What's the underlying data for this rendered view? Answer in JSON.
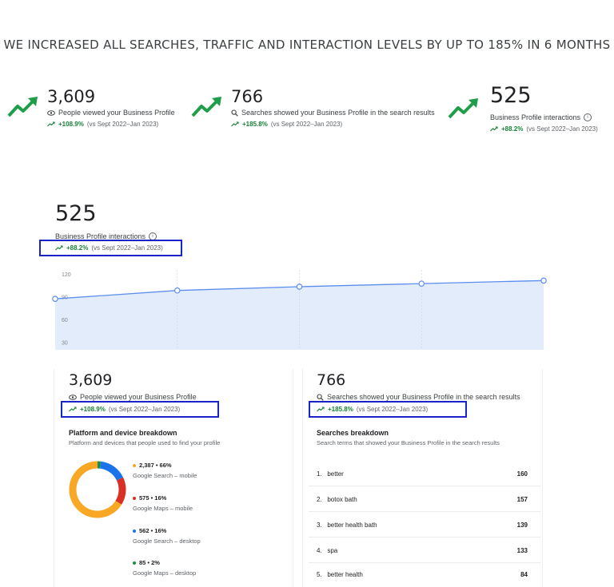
{
  "headline": "WE INCREASED ALL SEARCHES, TRAFFIC AND INTERACTION LEVELS BY UP TO 185% IN 6 MONTHS",
  "stats": [
    {
      "value": "3,609",
      "label": "People viewed your Business Profile",
      "pct": "+108.9%",
      "period": "(vs Sept 2022–Jan 2023)",
      "icon": "eye-icon"
    },
    {
      "value": "766",
      "label": "Searches showed your Business Profile in the search results",
      "pct": "+185.8%",
      "period": "(vs Sept 2022–Jan 2023)",
      "icon": "search-icon"
    },
    {
      "value": "525",
      "label": "Business Profile interactions",
      "pct": "+88.2%",
      "period": "(vs Sept 2022–Jan 2023)",
      "icon": "info-icon"
    }
  ],
  "interactions": {
    "value": "525",
    "label": "Business Profile interactions",
    "pct": "+88.2%",
    "period": "(vs Sept 2022–Jan 2023)"
  },
  "chart_data": {
    "type": "area",
    "title": "",
    "xlabel": "",
    "ylabel": "",
    "y_ticks": [
      "120",
      "90",
      "60",
      "30"
    ],
    "ylim": [
      20,
      125
    ],
    "x": [
      0,
      1,
      2,
      3,
      4
    ],
    "values": [
      87,
      98,
      103,
      107,
      111
    ],
    "grid": true,
    "colors": {
      "line": "#5b8def",
      "fill": "#e3ecfb",
      "marker_fill": "#ffffff"
    }
  },
  "views_panel": {
    "value": "3,609",
    "label": "People viewed your Business Profile",
    "pct": "+108.9%",
    "period": "(vs Sept 2022–Jan 2023)",
    "breakdown_title": "Platform and device breakdown",
    "breakdown_sub": "Platform and devices that people used to find your profile",
    "legend": [
      {
        "value": "2,387 • 66%",
        "name": "Google Search – mobile",
        "color": "#f9a825"
      },
      {
        "value": "575 • 16%",
        "name": "Google Maps – mobile",
        "color": "#d93025"
      },
      {
        "value": "562 • 16%",
        "name": "Google Search – desktop",
        "color": "#1a73e8"
      },
      {
        "value": "85 • 2%",
        "name": "Google Maps – desktop",
        "color": "#1e8e3e"
      }
    ]
  },
  "searches_panel": {
    "value": "766",
    "label": "Searches showed your Business Profile in the search results",
    "pct": "+185.8%",
    "period": "(vs Sept 2022–Jan 2023)",
    "breakdown_title": "Searches breakdown",
    "breakdown_sub": "Search terms that showed your Business Profile in the search results",
    "terms": [
      {
        "rank": "1.",
        "term": "better",
        "count": "160"
      },
      {
        "rank": "2.",
        "term": "botox bath",
        "count": "157"
      },
      {
        "rank": "3.",
        "term": "better health bath",
        "count": "139"
      },
      {
        "rank": "4.",
        "term": "spa",
        "count": "133"
      },
      {
        "rank": "5.",
        "term": "better health",
        "count": "84"
      }
    ]
  },
  "donut_data": [
    66,
    16,
    16,
    2
  ],
  "colors": {
    "trend_green": "#188038",
    "arrow_green": "#1e9e4a",
    "highlight_box": "#1a23c8"
  }
}
